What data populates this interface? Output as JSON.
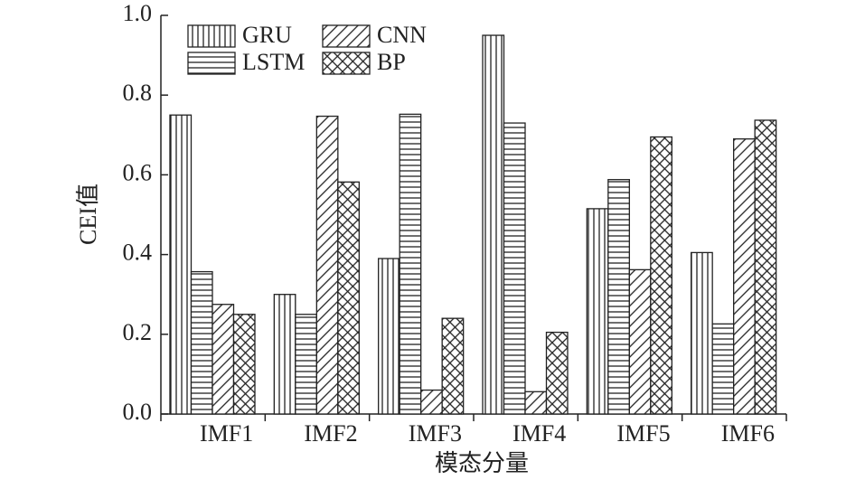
{
  "chart_data": {
    "type": "bar",
    "x_label": "模态分量",
    "y_label": "CEI值",
    "categories": [
      "IMF1",
      "IMF2",
      "IMF3",
      "IMF4",
      "IMF5",
      "IMF6"
    ],
    "series": [
      {
        "name": "GRU",
        "color": "#222222",
        "pattern": "vertical",
        "values": [
          0.75,
          0.3,
          0.39,
          0.95,
          0.515,
          0.405
        ]
      },
      {
        "name": "LSTM",
        "color": "#222222",
        "pattern": "horizontal",
        "values": [
          0.357,
          0.25,
          0.752,
          0.73,
          0.588,
          0.226
        ]
      },
      {
        "name": "CNN",
        "color": "#222222",
        "pattern": "diagonal",
        "values": [
          0.275,
          0.747,
          0.06,
          0.056,
          0.362,
          0.69
        ]
      },
      {
        "name": "BP",
        "color": "#222222",
        "pattern": "crosshatch",
        "values": [
          0.25,
          0.582,
          0.24,
          0.205,
          0.695,
          0.737
        ]
      }
    ],
    "ylim": [
      0,
      1.0
    ],
    "yticks": [
      {
        "value": 0,
        "label": "0.0"
      },
      0.2,
      0.4,
      0.6,
      0.8,
      {
        "value": 1.0,
        "label": "1.0"
      }
    ],
    "legend": "top-left"
  }
}
